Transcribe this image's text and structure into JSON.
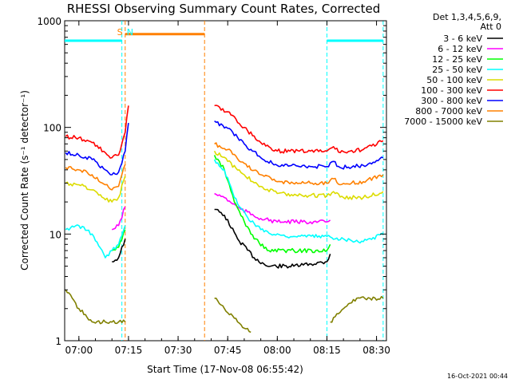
{
  "chart_data": {
    "type": "line",
    "title": "RHESSI Observing Summary Count Rates, Corrected",
    "xlabel": "Start Time (17-Nov-08 06:55:42)",
    "ylabel": "Corrected Count Rate (s⁻¹ detector⁻¹)",
    "x_unit": "HH:MM UT",
    "xlim": [
      "06:55:42",
      "08:33:00"
    ],
    "ylim": [
      1,
      1000
    ],
    "yscale": "log",
    "x_ticks": [
      "07:00",
      "07:15",
      "07:30",
      "07:45",
      "08:00",
      "08:15",
      "08:30"
    ],
    "y_ticks": [
      "1",
      "10",
      "100",
      "1000"
    ],
    "legend": {
      "header": [
        "Det 1,3,4,5,6,9,",
        "Att 0"
      ],
      "placement": "right"
    },
    "footer_timestamp": "16-Oct-2021 00:44",
    "series": [
      {
        "name": "3 - 6 keV",
        "color": "#000000",
        "points": [
          [
            "07:10",
            5.5
          ],
          [
            "07:12",
            6
          ],
          [
            "07:14",
            9
          ],
          [
            "07:41",
            17
          ],
          [
            "07:44",
            15
          ],
          [
            "07:48",
            9
          ],
          [
            "07:53",
            6
          ],
          [
            "07:57",
            5
          ],
          [
            "08:05",
            5
          ],
          [
            "08:15",
            5.5
          ],
          [
            "08:16",
            6.5
          ]
        ]
      },
      {
        "name": "6 - 12 keV",
        "color": "#ff00ff",
        "points": [
          [
            "07:10",
            11
          ],
          [
            "07:12",
            12
          ],
          [
            "07:14",
            18
          ],
          [
            "07:41",
            24
          ],
          [
            "07:44",
            22
          ],
          [
            "07:49",
            17
          ],
          [
            "07:55",
            14
          ],
          [
            "08:00",
            13
          ],
          [
            "08:10",
            13
          ],
          [
            "08:15",
            13
          ],
          [
            "08:16",
            13.5
          ]
        ]
      },
      {
        "name": "12 - 25 keV",
        "color": "#00ff00",
        "points": [
          [
            "07:10",
            7
          ],
          [
            "07:12",
            7.5
          ],
          [
            "07:14",
            11
          ],
          [
            "07:41",
            55
          ],
          [
            "07:44",
            40
          ],
          [
            "07:47",
            20
          ],
          [
            "07:52",
            10
          ],
          [
            "07:57",
            7
          ],
          [
            "08:05",
            7
          ],
          [
            "08:15",
            7
          ],
          [
            "08:16",
            8
          ]
        ]
      },
      {
        "name": "25 - 50 keV",
        "color": "#00ffff",
        "points": [
          [
            "06:56",
            11
          ],
          [
            "07:00",
            12
          ],
          [
            "07:04",
            10
          ],
          [
            "07:08",
            6
          ],
          [
            "07:10",
            7
          ],
          [
            "07:12",
            8
          ],
          [
            "07:14",
            12
          ],
          [
            "07:41",
            50
          ],
          [
            "07:44",
            40
          ],
          [
            "07:47",
            22
          ],
          [
            "07:52",
            13
          ],
          [
            "07:58",
            10
          ],
          [
            "08:05",
            9.5
          ],
          [
            "08:15",
            9.5
          ],
          [
            "08:20",
            9
          ],
          [
            "08:26",
            8.5
          ],
          [
            "08:32",
            10
          ]
        ]
      },
      {
        "name": "50 - 100 keV",
        "color": "#dcdc00",
        "points": [
          [
            "06:56",
            30
          ],
          [
            "07:00",
            29
          ],
          [
            "07:04",
            26
          ],
          [
            "07:08",
            21
          ],
          [
            "07:10",
            20
          ],
          [
            "07:12",
            22
          ],
          [
            "07:14",
            35
          ],
          [
            "07:41",
            60
          ],
          [
            "07:45",
            48
          ],
          [
            "07:50",
            36
          ],
          [
            "07:55",
            28
          ],
          [
            "08:00",
            24
          ],
          [
            "08:10",
            23
          ],
          [
            "08:15",
            23
          ],
          [
            "08:17",
            25
          ],
          [
            "08:20",
            22
          ],
          [
            "08:26",
            22
          ],
          [
            "08:32",
            25
          ]
        ]
      },
      {
        "name": "100 - 300 keV",
        "color": "#ff0000",
        "points": [
          [
            "06:56",
            82
          ],
          [
            "07:00",
            80
          ],
          [
            "07:04",
            72
          ],
          [
            "07:08",
            58
          ],
          [
            "07:10",
            52
          ],
          [
            "07:12",
            55
          ],
          [
            "07:14",
            90
          ],
          [
            "07:15",
            160
          ],
          [
            "07:41",
            160
          ],
          [
            "07:45",
            140
          ],
          [
            "07:50",
            100
          ],
          [
            "07:55",
            72
          ],
          [
            "08:00",
            60
          ],
          [
            "08:10",
            60
          ],
          [
            "08:15",
            60
          ],
          [
            "08:17",
            66
          ],
          [
            "08:19",
            58
          ],
          [
            "08:26",
            62
          ],
          [
            "08:32",
            75
          ]
        ]
      },
      {
        "name": "300 - 800 keV",
        "color": "#0000ff",
        "points": [
          [
            "06:56",
            58
          ],
          [
            "07:00",
            55
          ],
          [
            "07:04",
            50
          ],
          [
            "07:08",
            40
          ],
          [
            "07:10",
            36
          ],
          [
            "07:12",
            38
          ],
          [
            "07:14",
            60
          ],
          [
            "07:15",
            110
          ],
          [
            "07:41",
            115
          ],
          [
            "07:45",
            98
          ],
          [
            "07:50",
            70
          ],
          [
            "07:55",
            52
          ],
          [
            "08:00",
            44
          ],
          [
            "08:10",
            43
          ],
          [
            "08:15",
            43
          ],
          [
            "08:17",
            48
          ],
          [
            "08:19",
            42
          ],
          [
            "08:26",
            44
          ],
          [
            "08:32",
            52
          ]
        ]
      },
      {
        "name": "800 - 7000 keV",
        "color": "#ff8000",
        "points": [
          [
            "06:56",
            42
          ],
          [
            "07:00",
            40
          ],
          [
            "07:04",
            36
          ],
          [
            "07:08",
            29
          ],
          [
            "07:10",
            26
          ],
          [
            "07:12",
            28
          ],
          [
            "07:14",
            45
          ],
          [
            "07:41",
            70
          ],
          [
            "07:45",
            62
          ],
          [
            "07:50",
            46
          ],
          [
            "07:55",
            36
          ],
          [
            "08:00",
            31
          ],
          [
            "08:10",
            30
          ],
          [
            "08:15",
            30
          ],
          [
            "08:17",
            33
          ],
          [
            "08:19",
            29
          ],
          [
            "08:26",
            31
          ],
          [
            "08:32",
            36
          ]
        ]
      },
      {
        "name": "7000 - 15000 keV",
        "color": "#808000",
        "points": [
          [
            "06:56",
            3
          ],
          [
            "06:58",
            2.5
          ],
          [
            "07:00",
            2
          ],
          [
            "07:04",
            1.5
          ],
          [
            "07:08",
            1.5
          ],
          [
            "07:12",
            1.5
          ],
          [
            "07:14",
            1.5
          ],
          [
            "07:41",
            2.5
          ],
          [
            "07:44",
            2
          ],
          [
            "07:48",
            1.5
          ],
          [
            "07:52",
            1.2
          ],
          [
            "08:16",
            1.5
          ],
          [
            "08:20",
            2
          ],
          [
            "08:24",
            2.5
          ],
          [
            "08:28",
            2.5
          ],
          [
            "08:32",
            2.5
          ]
        ]
      }
    ],
    "annotations": [
      {
        "label": "S",
        "time": "07:13",
        "color": "#ff8000"
      },
      {
        "label": "N",
        "time": "07:14",
        "color": "#00ffff"
      }
    ],
    "spans": [
      {
        "kind": "night",
        "color": "#00ffff",
        "from": "06:55:42",
        "to": "07:13",
        "level": 650
      },
      {
        "kind": "saa",
        "color": "#ff8000",
        "from": "07:14",
        "to": "07:38",
        "level": 750
      },
      {
        "kind": "night",
        "color": "#00ffff",
        "from": "08:15",
        "to": "08:32",
        "level": 650
      }
    ],
    "vlines": [
      {
        "time": "07:13",
        "color": "#00ffff"
      },
      {
        "time": "07:14",
        "color": "#ff8000"
      },
      {
        "time": "07:38",
        "color": "#ff8000"
      },
      {
        "time": "08:15",
        "color": "#00ffff"
      },
      {
        "time": "08:32",
        "color": "#00ffff"
      }
    ]
  }
}
